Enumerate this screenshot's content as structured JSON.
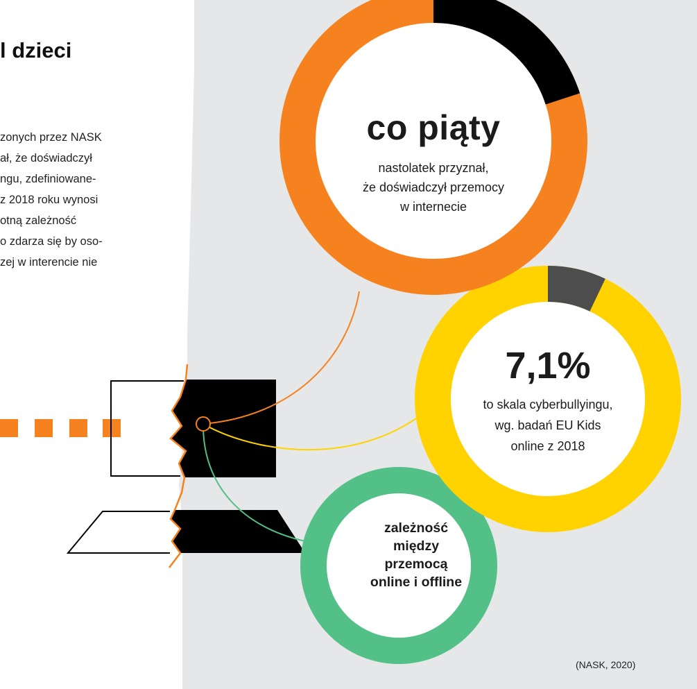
{
  "heading": "l dzieci",
  "body_lines": [
    "zonych przez NASK",
    "ał, że doświadczył",
    "ngu, zdefiniowane-",
    "z 2018 roku wynosi",
    "otną zależność",
    "o zdarza się by oso-",
    "zej w interencie nie"
  ],
  "stats": [
    {
      "headline": "co piąty",
      "description": [
        "nastolatek przyznał,",
        "że doświadczył przemocy",
        "w internecie"
      ],
      "value": 0.2,
      "ring_color": "#f5821f",
      "highlight_color": "#000000"
    },
    {
      "headline": "7,1%",
      "description": [
        "to skala cyberbullyingu,",
        "wg. badań EU Kids",
        "online z 2018"
      ],
      "value": 0.071,
      "ring_color": "#ffd200",
      "highlight_color": "#4d4d4d"
    },
    {
      "headline": "",
      "description": [
        "zależność",
        "między",
        "przemocą",
        "online i offline"
      ],
      "ring_color": "#52c087"
    }
  ],
  "source": "(NASK, 2020)",
  "colors": {
    "panel": "#e6e7e9",
    "accent": "#f5821f",
    "connector_orange": "#f5821f",
    "connector_yellow": "#ffd200",
    "connector_green": "#52c087",
    "laptop": "#000000"
  },
  "icons": [
    "torn-laptop-icon",
    "dotted-line-icon"
  ]
}
